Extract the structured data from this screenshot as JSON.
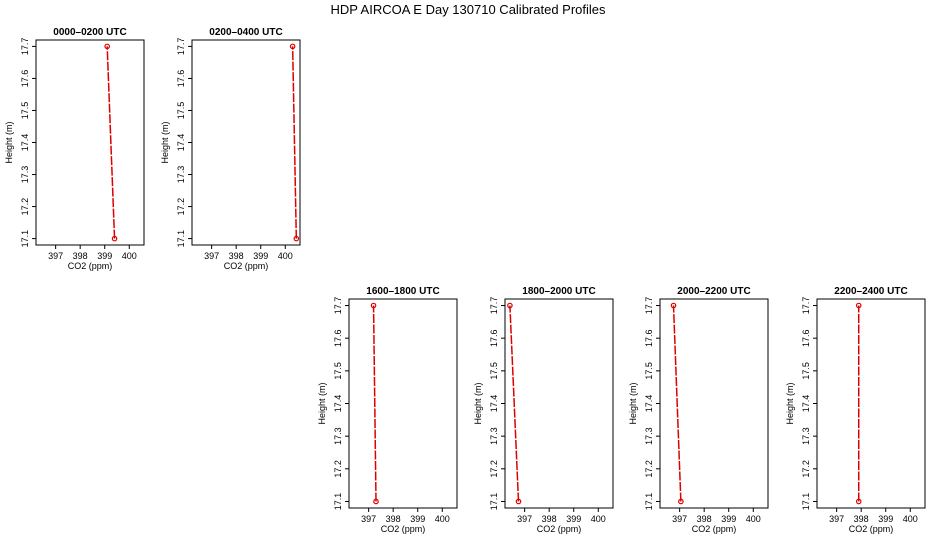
{
  "page": {
    "title": "HDP AIRCOA E  Day 130710  Calibrated Profiles"
  },
  "colors": {
    "profile": "#dd0000",
    "axis": "#000000"
  },
  "chart_data": [
    {
      "type": "line",
      "title": "0000–0200 UTC",
      "xlabel": "CO2 (ppm)",
      "ylabel": "Height (m)",
      "xlim": [
        396.2,
        400.6
      ],
      "ylim": [
        17.08,
        17.72
      ],
      "xticks": [
        397,
        398,
        399,
        400
      ],
      "yticks": [
        17.1,
        17.2,
        17.3,
        17.4,
        17.5,
        17.6,
        17.7
      ],
      "series": [
        {
          "x": [
            399.4,
            399.1
          ],
          "y": [
            17.1,
            17.7
          ]
        }
      ]
    },
    {
      "type": "line",
      "title": "0200–0400 UTC",
      "xlabel": "CO2 (ppm)",
      "ylabel": "Height (m)",
      "xlim": [
        396.2,
        400.6
      ],
      "ylim": [
        17.08,
        17.72
      ],
      "xticks": [
        397,
        398,
        399,
        400
      ],
      "yticks": [
        17.1,
        17.2,
        17.3,
        17.4,
        17.5,
        17.6,
        17.7
      ],
      "series": [
        {
          "x": [
            400.45,
            400.3
          ],
          "y": [
            17.1,
            17.7
          ]
        }
      ]
    },
    {
      "type": "line",
      "title": "1600–1800 UTC",
      "xlabel": "CO2 (ppm)",
      "ylabel": "Height (m)",
      "xlim": [
        396.2,
        400.6
      ],
      "ylim": [
        17.08,
        17.72
      ],
      "xticks": [
        397,
        398,
        399,
        400
      ],
      "yticks": [
        17.1,
        17.2,
        17.3,
        17.4,
        17.5,
        17.6,
        17.7
      ],
      "series": [
        {
          "x": [
            397.3,
            397.2
          ],
          "y": [
            17.1,
            17.7
          ]
        }
      ]
    },
    {
      "type": "line",
      "title": "1800–2000 UTC",
      "xlabel": "CO2 (ppm)",
      "ylabel": "Height (m)",
      "xlim": [
        396.2,
        400.6
      ],
      "ylim": [
        17.08,
        17.72
      ],
      "xticks": [
        397,
        398,
        399,
        400
      ],
      "yticks": [
        17.1,
        17.2,
        17.3,
        17.4,
        17.5,
        17.6,
        17.7
      ],
      "series": [
        {
          "x": [
            396.75,
            396.4
          ],
          "y": [
            17.1,
            17.7
          ]
        }
      ]
    },
    {
      "type": "line",
      "title": "2000–2200 UTC",
      "xlabel": "CO2 (ppm)",
      "ylabel": "Height (m)",
      "xlim": [
        396.2,
        400.6
      ],
      "ylim": [
        17.08,
        17.72
      ],
      "xticks": [
        397,
        398,
        399,
        400
      ],
      "yticks": [
        17.1,
        17.2,
        17.3,
        17.4,
        17.5,
        17.6,
        17.7
      ],
      "series": [
        {
          "x": [
            397.05,
            396.75
          ],
          "y": [
            17.1,
            17.7
          ]
        }
      ]
    },
    {
      "type": "line",
      "title": "2200–2400 UTC",
      "xlabel": "CO2 (ppm)",
      "ylabel": "Height (m)",
      "xlim": [
        396.2,
        400.6
      ],
      "ylim": [
        17.08,
        17.72
      ],
      "xticks": [
        397,
        398,
        399,
        400
      ],
      "yticks": [
        17.1,
        17.2,
        17.3,
        17.4,
        17.5,
        17.6,
        17.7
      ],
      "series": [
        {
          "x": [
            397.9,
            397.9
          ],
          "y": [
            17.1,
            17.7
          ]
        }
      ]
    }
  ]
}
